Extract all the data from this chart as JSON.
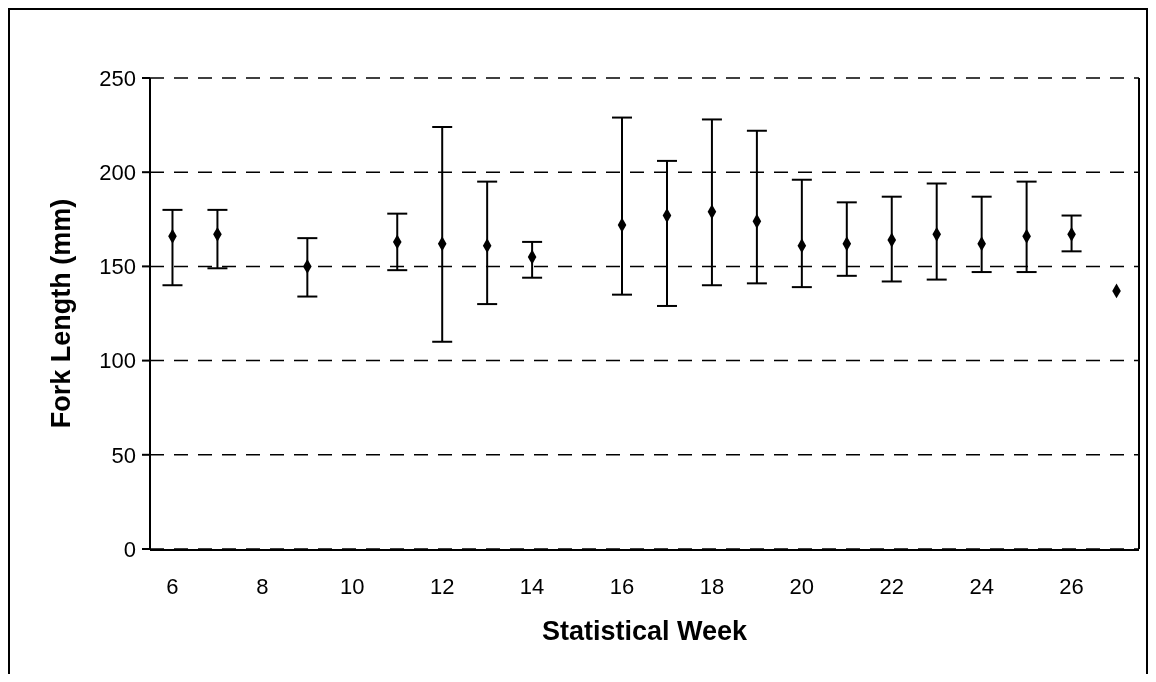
{
  "chart_data": {
    "type": "scatter",
    "xlabel": "Statistical Week",
    "ylabel": "Fork Length (mm)",
    "categories": [
      "6",
      null,
      "8",
      null,
      "10",
      null,
      "12",
      null,
      "14",
      null,
      "16",
      null,
      "18",
      null,
      "20",
      null,
      "22",
      null,
      "24",
      null,
      "26",
      null
    ],
    "values": [
      166,
      167,
      null,
      150,
      null,
      163,
      162,
      161,
      155,
      null,
      172,
      177,
      179,
      174,
      161,
      162,
      164,
      167,
      162,
      166,
      167,
      137
    ],
    "errors": [
      [
        140,
        180
      ],
      [
        149,
        180
      ],
      null,
      [
        134,
        165
      ],
      null,
      [
        148,
        178
      ],
      [
        110,
        224
      ],
      [
        130,
        195
      ],
      [
        144,
        163
      ],
      null,
      [
        135,
        229
      ],
      [
        129,
        206
      ],
      [
        140,
        228
      ],
      [
        141,
        222
      ],
      [
        139,
        196
      ],
      [
        145,
        184
      ],
      [
        142,
        187
      ],
      [
        143,
        194
      ],
      [
        147,
        187
      ],
      [
        147,
        195
      ],
      [
        158,
        177
      ],
      null
    ],
    "color": "#000000",
    "marker": "diamond",
    "ylim": [
      0,
      250
    ],
    "yticks": [
      0,
      50,
      100,
      150,
      200,
      250
    ],
    "grid": "y"
  }
}
